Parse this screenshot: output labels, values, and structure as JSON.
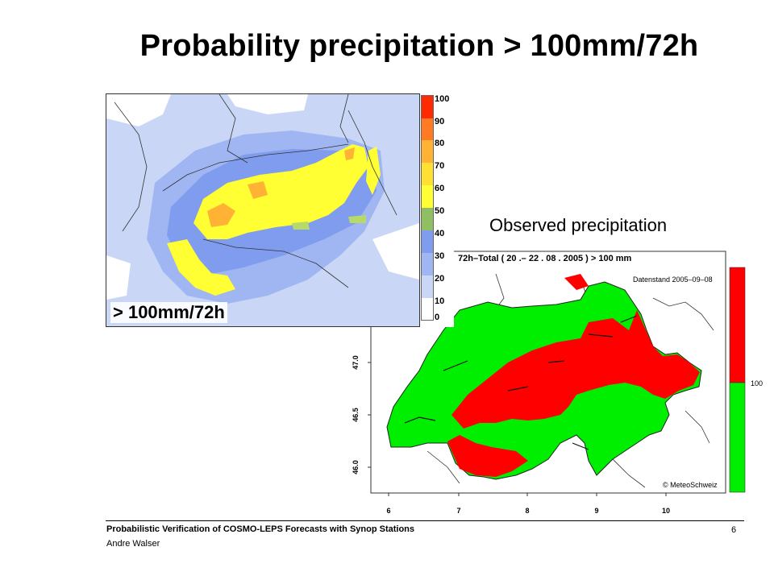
{
  "slide": {
    "title": "Probability precipitation > 100mm/72h",
    "observed_title": "Observed precipitation"
  },
  "forecast_map": {
    "label": "> 100mm/72h",
    "colorbar": {
      "ticks": [
        "0",
        "10",
        "20",
        "30",
        "40",
        "50",
        "60",
        "70",
        "80",
        "90",
        "100"
      ],
      "colors": [
        "#ffffff",
        "#c9d6f6",
        "#9fb6f2",
        "#7f9cee",
        "#8fbf60",
        "#b7d96a",
        "#ffff33",
        "#ffe033",
        "#ffb233",
        "#ff7a22",
        "#ff2a00"
      ]
    }
  },
  "observed_map": {
    "header": "72h–Total ( 20 .– 22 . 08 . 2005 ) > 100 mm",
    "datenstand": "Datenstand 2005–09–08",
    "copyright": "© MeteoSchweiz",
    "legend_value": "100",
    "legend_colors": {
      "above": "#ff0000",
      "below": "#00ee00"
    },
    "lat_ticks": [
      "47.0",
      "46.5",
      "46.0"
    ],
    "lon_ticks": [
      "6",
      "7",
      "8",
      "9",
      "10"
    ]
  },
  "footer": {
    "title": "Probabilistic Verification of COSMO-LEPS Forecasts with Synop Stations",
    "author": "Andre Walser",
    "page_number": "6"
  }
}
